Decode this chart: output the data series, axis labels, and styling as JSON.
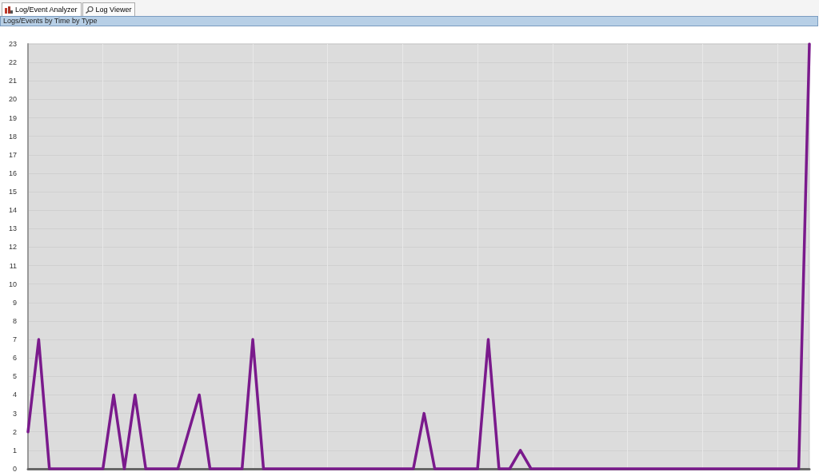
{
  "chart_data": {
    "type": "line",
    "title": "Logs/Events by Time by Type",
    "annotations": [
      "Log/Event Analyzer",
      "Log Viewer"
    ],
    "categories": [
      null,
      null,
      null,
      null,
      null,
      null,
      null,
      null,
      null,
      null,
      null,
      null,
      null,
      null,
      null,
      null,
      null,
      null,
      null,
      null,
      null,
      null,
      null,
      null,
      null,
      null,
      null,
      null,
      null,
      null,
      null,
      null,
      null,
      null,
      null,
      null,
      null,
      null,
      null,
      null,
      null,
      null,
      null,
      null,
      null,
      null,
      null,
      null,
      null,
      null,
      null,
      null,
      null,
      null,
      null,
      null,
      null,
      null,
      null,
      null,
      null,
      null,
      null,
      null,
      null,
      null,
      null,
      null,
      null,
      null,
      null,
      null,
      null,
      null
    ],
    "series": [
      {
        "color": "#7a1a8c",
        "values": [
          2,
          7,
          0,
          0,
          0,
          0,
          0,
          0,
          4,
          0,
          4,
          0,
          0,
          0,
          0,
          2,
          4,
          0,
          0,
          0,
          0,
          7,
          0,
          0,
          0,
          0,
          0,
          0,
          0,
          0,
          0,
          0,
          0,
          0,
          0,
          0,
          0,
          3,
          0,
          0,
          0,
          0,
          0,
          7,
          0,
          0,
          1,
          0,
          0,
          0,
          0,
          0,
          0,
          0,
          0,
          0,
          0,
          0,
          0,
          0,
          0,
          0,
          0,
          0,
          0,
          0,
          0,
          0,
          0,
          0,
          0,
          0,
          0,
          23
        ]
      }
    ],
    "ylim": [
      0,
      23
    ],
    "yticks": [
      0,
      1,
      2,
      3,
      4,
      5,
      6,
      7,
      8,
      9,
      10,
      11,
      12,
      13,
      14,
      15,
      16,
      17,
      18,
      19,
      20,
      21,
      22,
      23
    ],
    "grid": true,
    "marker": "none",
    "line_style": "solid",
    "tick_labels": "y"
  }
}
